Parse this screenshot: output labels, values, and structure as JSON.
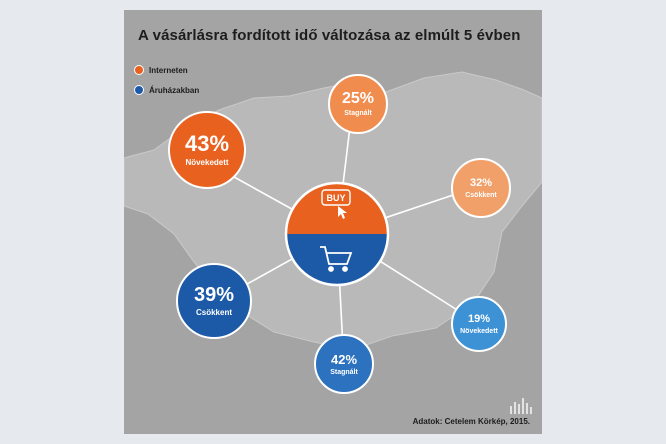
{
  "title": "A vásárlásra fordított idő változása az elmúlt 5 évben",
  "legend": [
    {
      "label": "Interneten",
      "color": "#e8611f"
    },
    {
      "label": "Áruházakban",
      "color": "#1c5aa8"
    }
  ],
  "center": {
    "top_icon": "buy-click-icon",
    "bottom_icon": "shopping-cart-icon",
    "top_text": "BUY",
    "top_color": "#e8611f",
    "bottom_color": "#1c5aa8"
  },
  "bubbles": {
    "internet_increased": {
      "pct": "43%",
      "label": "Növekedett",
      "color": "#e8611f"
    },
    "internet_stagnated": {
      "pct": "25%",
      "label": "Stagnált",
      "color": "#f08c4e"
    },
    "internet_decreased": {
      "pct": "32%",
      "label": "Csökkent",
      "color": "#f2a06a"
    },
    "store_decreased": {
      "pct": "39%",
      "label": "Csökkent",
      "color": "#1c5aa8"
    },
    "store_stagnated": {
      "pct": "42%",
      "label": "Stagnált",
      "color": "#2c72bf"
    },
    "store_increased": {
      "pct": "19%",
      "label": "Növekedett",
      "color": "#3d92d6"
    }
  },
  "source": "Adatok: Cetelem Körkép, 2015.",
  "colors": {
    "background": "#e6eaee",
    "panel": "#a4a4a4",
    "map": "#b8b8b8"
  }
}
